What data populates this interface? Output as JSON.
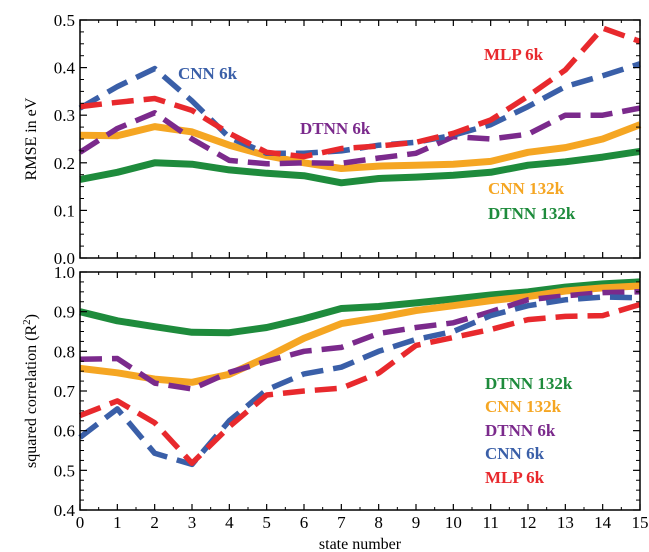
{
  "chart_data": [
    {
      "type": "line",
      "ylabel": "RMSE in eV",
      "xlim": [
        0,
        15
      ],
      "ylim": [
        0.0,
        0.5
      ],
      "xticks": [
        0,
        1,
        2,
        3,
        4,
        5,
        6,
        7,
        8,
        9,
        10,
        11,
        12,
        13,
        14,
        15
      ],
      "yticks": [
        "0.0",
        "0.1",
        "0.2",
        "0.3",
        "0.4",
        "0.5"
      ],
      "legend_placement": "inline labels",
      "series": [
        {
          "name": "DTNN 132k",
          "color": "#1e8b3c",
          "style": "solid",
          "x": [
            0,
            1,
            2,
            3,
            4,
            5,
            6,
            7,
            8,
            9,
            10,
            11,
            12,
            13,
            14,
            15
          ],
          "values": [
            0.165,
            0.18,
            0.2,
            0.197,
            0.185,
            0.178,
            0.173,
            0.158,
            0.167,
            0.17,
            0.174,
            0.18,
            0.195,
            0.202,
            0.212,
            0.224
          ]
        },
        {
          "name": "CNN 132k",
          "color": "#f5a623",
          "style": "solid",
          "x": [
            0,
            1,
            2,
            3,
            4,
            5,
            6,
            7,
            8,
            9,
            10,
            11,
            12,
            13,
            14,
            15
          ],
          "values": [
            0.258,
            0.257,
            0.276,
            0.265,
            0.237,
            0.215,
            0.2,
            0.188,
            0.193,
            0.195,
            0.197,
            0.203,
            0.222,
            0.232,
            0.25,
            0.28
          ]
        },
        {
          "name": "DTNN 6k",
          "color": "#7b2a8c",
          "style": "dashed",
          "x": [
            0,
            1,
            2,
            3,
            4,
            5,
            6,
            7,
            8,
            9,
            10,
            11,
            12,
            13,
            14,
            15
          ],
          "values": [
            0.222,
            0.272,
            0.305,
            0.25,
            0.205,
            0.198,
            0.2,
            0.199,
            0.21,
            0.22,
            0.255,
            0.25,
            0.26,
            0.3,
            0.3,
            0.315
          ]
        },
        {
          "name": "CNN 6k",
          "color": "#3a5fa8",
          "style": "dashed",
          "x": [
            0,
            1,
            2,
            3,
            4,
            5,
            6,
            7,
            8,
            9,
            10,
            11,
            12,
            13,
            14,
            15
          ],
          "values": [
            0.315,
            0.36,
            0.398,
            0.33,
            0.253,
            0.22,
            0.22,
            0.225,
            0.237,
            0.243,
            0.258,
            0.28,
            0.318,
            0.36,
            0.383,
            0.408
          ]
        },
        {
          "name": "MLP 6k",
          "color": "#e8292d",
          "style": "dashed",
          "x": [
            0,
            1,
            2,
            3,
            4,
            5,
            6,
            7,
            8,
            9,
            10,
            11,
            12,
            13,
            14,
            15
          ],
          "values": [
            0.318,
            0.327,
            0.335,
            0.31,
            0.262,
            0.222,
            0.213,
            0.23,
            0.235,
            0.243,
            0.262,
            0.29,
            0.34,
            0.395,
            0.483,
            0.455
          ]
        }
      ]
    },
    {
      "type": "line",
      "xlabel": "state number",
      "ylabel": "squared correlation (R²)",
      "xlim": [
        0,
        15
      ],
      "ylim": [
        0.4,
        1.0
      ],
      "xticks": [
        0,
        1,
        2,
        3,
        4,
        5,
        6,
        7,
        8,
        9,
        10,
        11,
        12,
        13,
        14,
        15
      ],
      "yticks": [
        "0.4",
        "0.5",
        "0.6",
        "0.7",
        "0.8",
        "0.9",
        "1.0"
      ],
      "legend_placement": "right",
      "series": [
        {
          "name": "DTNN 132k",
          "color": "#1e8b3c",
          "style": "solid",
          "x": [
            0,
            1,
            2,
            3,
            4,
            5,
            6,
            7,
            8,
            9,
            10,
            11,
            12,
            13,
            14,
            15
          ],
          "values": [
            0.9,
            0.877,
            0.862,
            0.848,
            0.847,
            0.86,
            0.882,
            0.908,
            0.913,
            0.922,
            0.932,
            0.942,
            0.95,
            0.962,
            0.97,
            0.975
          ]
        },
        {
          "name": "CNN 132k",
          "color": "#f5a623",
          "style": "solid",
          "x": [
            0,
            1,
            2,
            3,
            4,
            5,
            6,
            7,
            8,
            9,
            10,
            11,
            12,
            13,
            14,
            15
          ],
          "values": [
            0.757,
            0.746,
            0.73,
            0.722,
            0.742,
            0.785,
            0.833,
            0.87,
            0.885,
            0.903,
            0.915,
            0.928,
            0.938,
            0.952,
            0.96,
            0.965
          ]
        },
        {
          "name": "DTNN 6k",
          "color": "#7b2a8c",
          "style": "dashed",
          "x": [
            0,
            1,
            2,
            3,
            4,
            5,
            6,
            7,
            8,
            9,
            10,
            11,
            12,
            13,
            14,
            15
          ],
          "values": [
            0.78,
            0.782,
            0.72,
            0.705,
            0.747,
            0.775,
            0.8,
            0.81,
            0.845,
            0.86,
            0.872,
            0.9,
            0.93,
            0.94,
            0.948,
            0.95
          ]
        },
        {
          "name": "CNN 6k",
          "color": "#3a5fa8",
          "style": "dashed",
          "x": [
            0,
            1,
            2,
            3,
            4,
            5,
            6,
            7,
            8,
            9,
            10,
            11,
            12,
            13,
            14,
            15
          ],
          "values": [
            0.583,
            0.655,
            0.543,
            0.515,
            0.625,
            0.703,
            0.743,
            0.76,
            0.8,
            0.83,
            0.85,
            0.89,
            0.915,
            0.93,
            0.937,
            0.935
          ]
        },
        {
          "name": "MLP 6k",
          "color": "#e8292d",
          "style": "dashed",
          "x": [
            0,
            1,
            2,
            3,
            4,
            5,
            6,
            7,
            8,
            9,
            10,
            11,
            12,
            13,
            14,
            15
          ],
          "values": [
            0.638,
            0.675,
            0.62,
            0.518,
            0.61,
            0.69,
            0.7,
            0.707,
            0.745,
            0.815,
            0.835,
            0.855,
            0.88,
            0.888,
            0.89,
            0.918
          ]
        }
      ]
    }
  ]
}
